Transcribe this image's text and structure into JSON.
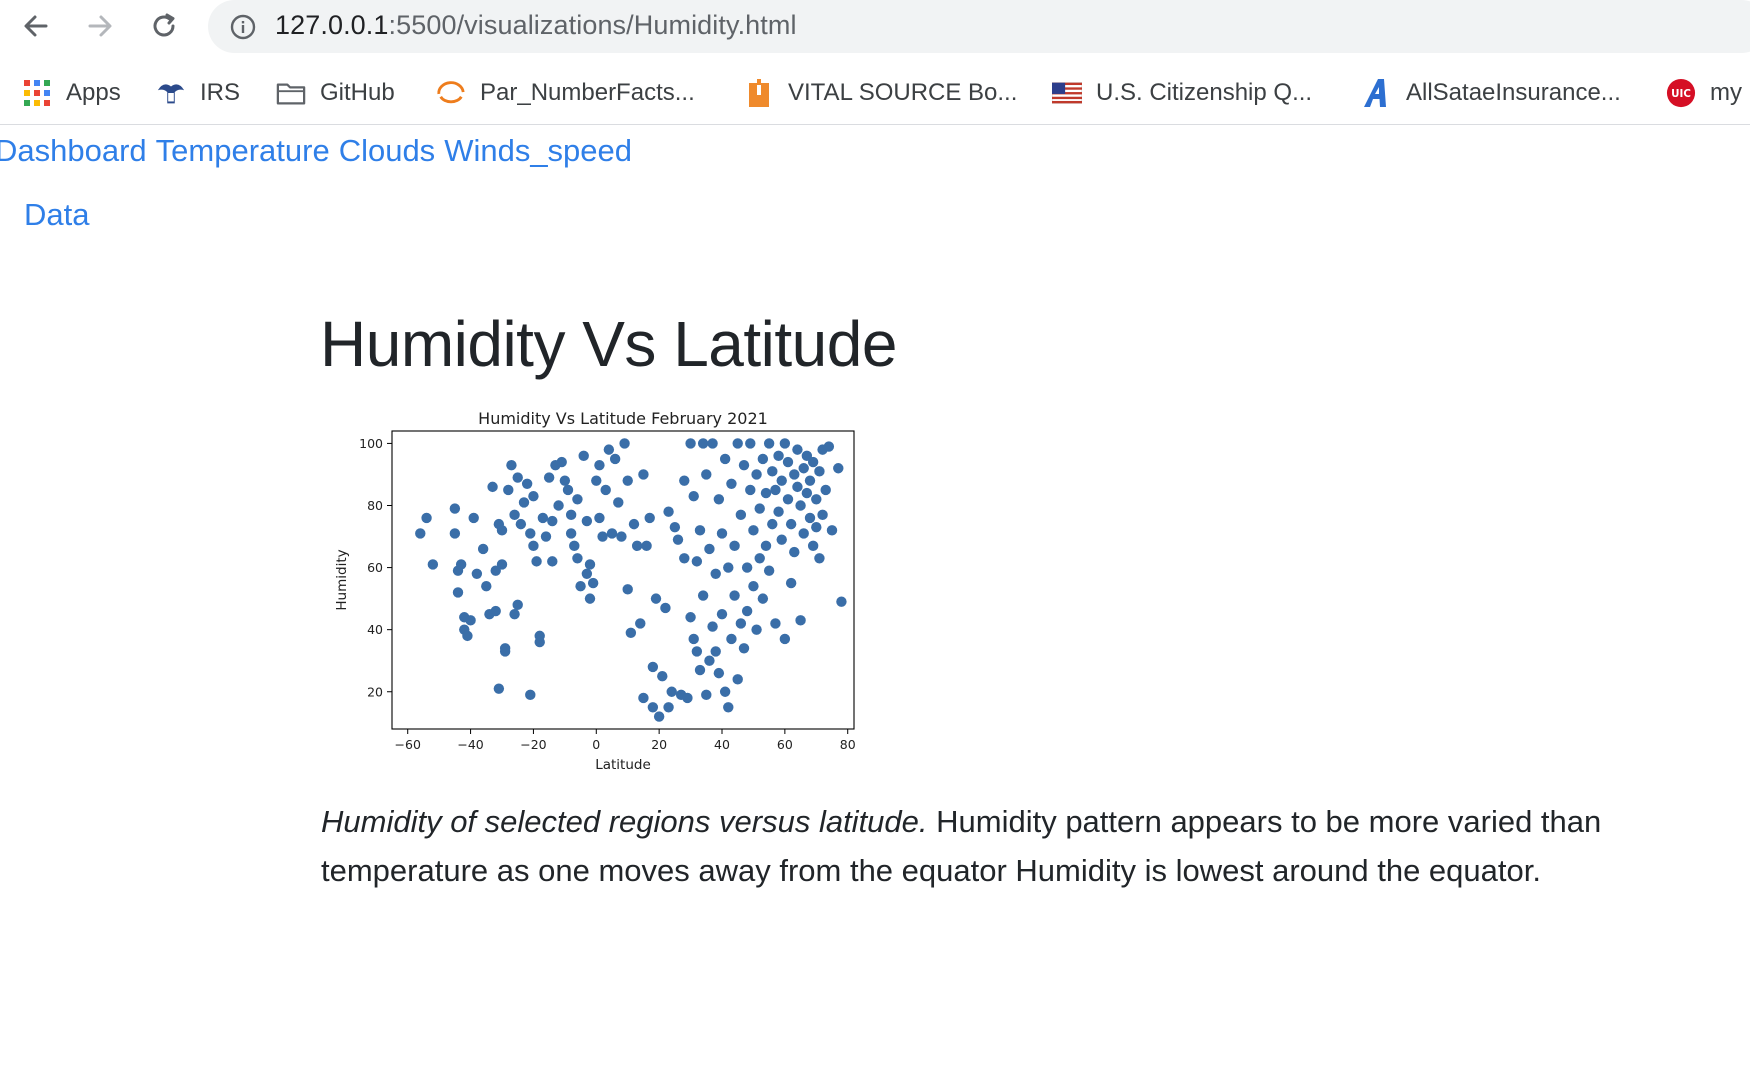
{
  "browser": {
    "url_host": "127.0.0.1",
    "url_path": ":5500/visualizations/Humidity.html"
  },
  "bookmarks": [
    {
      "label": "Apps",
      "icon": "apps-grid-icon"
    },
    {
      "label": "IRS",
      "icon": "irs-eagle-icon"
    },
    {
      "label": "GitHub",
      "icon": "folder-icon"
    },
    {
      "label": "Par_NumberFacts...",
      "icon": "par-logo-icon"
    },
    {
      "label": "VITAL SOURCE Bo...",
      "icon": "vitalsource-icon"
    },
    {
      "label": "U.S. Citizenship Q...",
      "icon": "us-flag-icon"
    },
    {
      "label": "AllSataeInsurance...",
      "icon": "allstate-a-icon"
    },
    {
      "label": "my",
      "icon": "uic-badge-icon"
    }
  ],
  "nav": {
    "links": [
      "Dashboard",
      "Temperature",
      "Clouds",
      "Winds_speed"
    ],
    "data_link": "Data"
  },
  "main": {
    "heading": "Humidity Vs Latitude",
    "caption_italic": "Humidity of selected regions versus latitude.",
    "caption_rest": " Humidity pattern appears to be more varied than temperature as one moves away from the equator Humidity is lowest around the equator."
  },
  "chart_data": {
    "type": "scatter",
    "title": "Humidity Vs Latitude February 2021",
    "xlabel": "Latitude",
    "ylabel": "Humidity",
    "xlim": [
      -65,
      82
    ],
    "ylim": [
      8,
      104
    ],
    "xticks": [
      -60,
      -40,
      -20,
      0,
      20,
      40,
      60,
      80
    ],
    "yticks": [
      20,
      40,
      60,
      80,
      100
    ],
    "grid": false,
    "marker_color": "#3a6ea8",
    "points": [
      [
        -56,
        71
      ],
      [
        -54,
        76
      ],
      [
        -52,
        61
      ],
      [
        -45,
        79
      ],
      [
        -45,
        71
      ],
      [
        -44,
        59
      ],
      [
        -44,
        52
      ],
      [
        -43,
        61
      ],
      [
        -42,
        44
      ],
      [
        -42,
        40
      ],
      [
        -41,
        38
      ],
      [
        -40,
        43
      ],
      [
        -39,
        76
      ],
      [
        -38,
        58
      ],
      [
        -36,
        66
      ],
      [
        -35,
        54
      ],
      [
        -34,
        45
      ],
      [
        -33,
        86
      ],
      [
        -32,
        59
      ],
      [
        -32,
        46
      ],
      [
        -31,
        74
      ],
      [
        -31,
        21
      ],
      [
        -30,
        61
      ],
      [
        -30,
        72
      ],
      [
        -29,
        34
      ],
      [
        -29,
        33
      ],
      [
        -28,
        85
      ],
      [
        -27,
        93
      ],
      [
        -26,
        77
      ],
      [
        -26,
        45
      ],
      [
        -25,
        48
      ],
      [
        -25,
        89
      ],
      [
        -24,
        74
      ],
      [
        -23,
        81
      ],
      [
        -22,
        87
      ],
      [
        -21,
        71
      ],
      [
        -21,
        19
      ],
      [
        -20,
        67
      ],
      [
        -20,
        83
      ],
      [
        -19,
        62
      ],
      [
        -18,
        36
      ],
      [
        -18,
        38
      ],
      [
        -17,
        76
      ],
      [
        -16,
        70
      ],
      [
        -15,
        89
      ],
      [
        -14,
        62
      ],
      [
        -14,
        75
      ],
      [
        -13,
        93
      ],
      [
        -12,
        80
      ],
      [
        -11,
        94
      ],
      [
        -10,
        88
      ],
      [
        -9,
        85
      ],
      [
        -8,
        71
      ],
      [
        -8,
        77
      ],
      [
        -7,
        67
      ],
      [
        -6,
        63
      ],
      [
        -6,
        82
      ],
      [
        -5,
        54
      ],
      [
        -4,
        96
      ],
      [
        -3,
        75
      ],
      [
        -3,
        58
      ],
      [
        -2,
        50
      ],
      [
        -2,
        61
      ],
      [
        -1,
        55
      ],
      [
        0,
        88
      ],
      [
        1,
        93
      ],
      [
        1,
        76
      ],
      [
        2,
        70
      ],
      [
        3,
        85
      ],
      [
        4,
        98
      ],
      [
        5,
        71
      ],
      [
        6,
        95
      ],
      [
        7,
        81
      ],
      [
        8,
        70
      ],
      [
        9,
        100
      ],
      [
        10,
        88
      ],
      [
        10,
        53
      ],
      [
        11,
        39
      ],
      [
        12,
        74
      ],
      [
        13,
        67
      ],
      [
        14,
        42
      ],
      [
        15,
        90
      ],
      [
        15,
        18
      ],
      [
        16,
        67
      ],
      [
        17,
        76
      ],
      [
        18,
        15
      ],
      [
        18,
        28
      ],
      [
        19,
        50
      ],
      [
        20,
        12
      ],
      [
        21,
        25
      ],
      [
        22,
        47
      ],
      [
        23,
        78
      ],
      [
        23,
        15
      ],
      [
        24,
        20
      ],
      [
        25,
        73
      ],
      [
        26,
        69
      ],
      [
        27,
        19
      ],
      [
        28,
        63
      ],
      [
        28,
        88
      ],
      [
        29,
        18
      ],
      [
        30,
        100
      ],
      [
        30,
        44
      ],
      [
        31,
        83
      ],
      [
        31,
        37
      ],
      [
        32,
        62
      ],
      [
        32,
        33
      ],
      [
        33,
        72
      ],
      [
        33,
        27
      ],
      [
        34,
        51
      ],
      [
        34,
        100
      ],
      [
        35,
        19
      ],
      [
        35,
        90
      ],
      [
        36,
        66
      ],
      [
        36,
        30
      ],
      [
        37,
        41
      ],
      [
        37,
        100
      ],
      [
        38,
        58
      ],
      [
        38,
        33
      ],
      [
        39,
        82
      ],
      [
        39,
        26
      ],
      [
        40,
        71
      ],
      [
        40,
        45
      ],
      [
        41,
        95
      ],
      [
        41,
        20
      ],
      [
        42,
        60
      ],
      [
        42,
        15
      ],
      [
        43,
        87
      ],
      [
        43,
        37
      ],
      [
        44,
        67
      ],
      [
        44,
        51
      ],
      [
        45,
        100
      ],
      [
        45,
        24
      ],
      [
        46,
        77
      ],
      [
        46,
        42
      ],
      [
        47,
        93
      ],
      [
        47,
        34
      ],
      [
        48,
        60
      ],
      [
        48,
        46
      ],
      [
        49,
        85
      ],
      [
        49,
        100
      ],
      [
        50,
        72
      ],
      [
        50,
        54
      ],
      [
        51,
        90
      ],
      [
        51,
        40
      ],
      [
        52,
        63
      ],
      [
        52,
        79
      ],
      [
        53,
        95
      ],
      [
        53,
        50
      ],
      [
        54,
        84
      ],
      [
        54,
        67
      ],
      [
        55,
        100
      ],
      [
        55,
        59
      ],
      [
        56,
        74
      ],
      [
        56,
        91
      ],
      [
        57,
        85
      ],
      [
        57,
        42
      ],
      [
        58,
        96
      ],
      [
        58,
        78
      ],
      [
        59,
        69
      ],
      [
        59,
        88
      ],
      [
        60,
        100
      ],
      [
        60,
        37
      ],
      [
        61,
        82
      ],
      [
        61,
        94
      ],
      [
        62,
        74
      ],
      [
        62,
        55
      ],
      [
        63,
        90
      ],
      [
        63,
        65
      ],
      [
        64,
        86
      ],
      [
        64,
        98
      ],
      [
        65,
        80
      ],
      [
        65,
        43
      ],
      [
        66,
        92
      ],
      [
        66,
        71
      ],
      [
        67,
        84
      ],
      [
        67,
        96
      ],
      [
        68,
        76
      ],
      [
        68,
        88
      ],
      [
        69,
        94
      ],
      [
        69,
        67
      ],
      [
        70,
        82
      ],
      [
        70,
        73
      ],
      [
        71,
        91
      ],
      [
        71,
        63
      ],
      [
        72,
        98
      ],
      [
        72,
        77
      ],
      [
        73,
        85
      ],
      [
        74,
        99
      ],
      [
        75,
        72
      ],
      [
        77,
        92
      ],
      [
        78,
        49
      ]
    ]
  }
}
